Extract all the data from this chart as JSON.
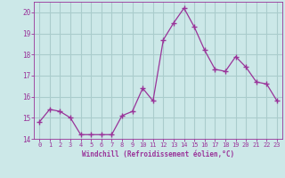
{
  "x": [
    0,
    1,
    2,
    3,
    4,
    5,
    6,
    7,
    8,
    9,
    10,
    11,
    12,
    13,
    14,
    15,
    16,
    17,
    18,
    19,
    20,
    21,
    22,
    23
  ],
  "y": [
    14.8,
    15.4,
    15.3,
    15.0,
    14.2,
    14.2,
    14.2,
    14.2,
    15.1,
    15.3,
    16.4,
    15.8,
    18.7,
    19.5,
    20.2,
    19.3,
    18.2,
    17.3,
    17.2,
    17.9,
    17.4,
    16.7,
    16.6,
    15.8
  ],
  "xlabel": "Windchill (Refroidissement éolien,°C)",
  "ylim": [
    14,
    20.5
  ],
  "xlim": [
    -0.5,
    23.5
  ],
  "yticks": [
    14,
    15,
    16,
    17,
    18,
    19,
    20
  ],
  "xticks": [
    0,
    1,
    2,
    3,
    4,
    5,
    6,
    7,
    8,
    9,
    10,
    11,
    12,
    13,
    14,
    15,
    16,
    17,
    18,
    19,
    20,
    21,
    22,
    23
  ],
  "line_color": "#993399",
  "marker": "+",
  "marker_size": 4,
  "bg_color": "#cce8e8",
  "grid_color": "#aacccc",
  "tick_label_color": "#993399",
  "xlabel_color": "#993399",
  "spine_color": "#993399",
  "fig_width": 3.2,
  "fig_height": 2.0,
  "dpi": 100
}
